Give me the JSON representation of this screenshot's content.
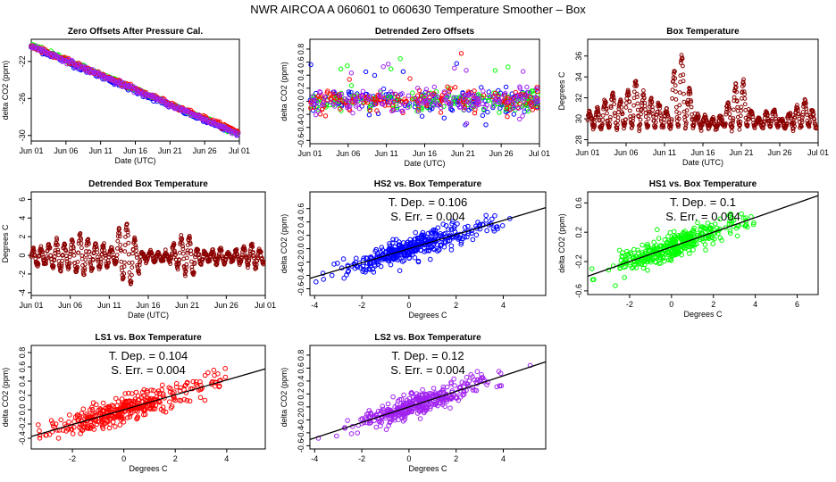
{
  "page_title": "NWR   AIRCOA A   060601 to 060630   Temperature Smoother – Box",
  "colors": {
    "axis": "#000000",
    "blue": "#0000ff",
    "green": "#00ff00",
    "red": "#ff0000",
    "magenta": "#a020f0",
    "maroon": "#8b0000",
    "orange": "#ff8c00",
    "fit": "#000000"
  },
  "chart_data": [
    {
      "id": "p1",
      "type": "scatter",
      "title": "Zero Offsets After Pressure Cal.",
      "xlabel": "Date (UTC)",
      "ylabel": "delta CO2 (ppm)",
      "xlim": [
        0,
        30
      ],
      "ylim": [
        -30.6,
        -19.6
      ],
      "x_ticks": [
        0,
        5,
        10,
        15,
        20,
        25,
        30
      ],
      "x_tick_labels": [
        "Jun 01",
        "Jun 06",
        "Jun 11",
        "Jun 16",
        "Jun 21",
        "Jun 26",
        "Jul 01"
      ],
      "y_ticks": [
        -30,
        -26,
        -22
      ],
      "y_tick_labels": [
        "-30",
        "-26",
        "-22"
      ],
      "series": [
        {
          "name": "HS2",
          "color": "blue",
          "trend": [
            -20.4,
            -29.9
          ],
          "noise": 0.35
        },
        {
          "name": "HS1",
          "color": "green",
          "trend": [
            -20.2,
            -29.7
          ],
          "noise": 0.3
        },
        {
          "name": "LS1",
          "color": "red",
          "trend": [
            -20.3,
            -29.6
          ],
          "noise": 0.3
        },
        {
          "name": "LS2",
          "color": "magenta",
          "trend": [
            -20.3,
            -29.8
          ],
          "noise": 0.35
        }
      ]
    },
    {
      "id": "p2",
      "type": "scatter",
      "title": "Detrended Zero Offsets",
      "xlabel": "Date (UTC)",
      "ylabel": "delta CO2 (ppm)",
      "xlim": [
        0,
        30
      ],
      "ylim": [
        -0.65,
        0.95
      ],
      "x_ticks": [
        0,
        5,
        10,
        15,
        20,
        25,
        30
      ],
      "x_tick_labels": [
        "Jun 01",
        "Jun 06",
        "Jun 11",
        "Jun 16",
        "Jun 21",
        "Jun 26",
        "Jul 01"
      ],
      "y_ticks": [
        -0.6,
        -0.4,
        -0.2,
        0.0,
        0.2,
        0.4,
        0.6,
        0.8
      ],
      "y_tick_labels": [
        "-0.6",
        "-0.4",
        "-0.2",
        "0.0",
        "0.2",
        "0.4",
        "0.6",
        "0.8"
      ],
      "series": [
        {
          "name": "HS2",
          "color": "blue",
          "noise": 0.2
        },
        {
          "name": "HS1",
          "color": "green",
          "noise": 0.17
        },
        {
          "name": "LS1",
          "color": "red",
          "noise": 0.2
        },
        {
          "name": "LS2",
          "color": "magenta",
          "noise": 0.2
        }
      ]
    },
    {
      "id": "p3",
      "type": "scatter",
      "title": "Box Temperature",
      "xlabel": "Date (UTC)",
      "ylabel": "Degrees C",
      "xlim": [
        0,
        30
      ],
      "ylim": [
        27.7,
        37.6
      ],
      "x_ticks": [
        0,
        5,
        10,
        15,
        20,
        25,
        30
      ],
      "x_tick_labels": [
        "Jun 01",
        "Jun 06",
        "Jun 11",
        "Jun 16",
        "Jun 21",
        "Jun 26",
        "Jul 01"
      ],
      "y_ticks": [
        28,
        30,
        32,
        34,
        36
      ],
      "y_tick_labels": [
        "28",
        "30",
        "32",
        "34",
        "36"
      ],
      "series": [
        {
          "name": "Box",
          "color": "maroon",
          "base": 29.2
        }
      ]
    },
    {
      "id": "p4",
      "type": "scatter",
      "title": "Detrended Box Temperature",
      "xlabel": "Date (UTC)",
      "ylabel": "Degrees C",
      "xlim": [
        0,
        30
      ],
      "ylim": [
        -4.3,
        6.8
      ],
      "x_ticks": [
        0,
        5,
        10,
        15,
        20,
        25,
        30
      ],
      "x_tick_labels": [
        "Jun 01",
        "Jun 06",
        "Jun 11",
        "Jun 16",
        "Jun 21",
        "Jun 26",
        "Jul 01"
      ],
      "y_ticks": [
        -4,
        -2,
        0,
        2,
        4,
        6
      ],
      "y_tick_labels": [
        "-4",
        "-2",
        "0",
        "2",
        "4",
        "6"
      ],
      "series": [
        {
          "name": "Box",
          "color": "maroon",
          "base": 0
        }
      ]
    },
    {
      "id": "p5",
      "type": "scatter",
      "title": "HS2 vs. Box Temperature",
      "xlabel": "Degrees C",
      "ylabel": "delta CO2 (ppm)",
      "xlim": [
        -4.2,
        5.8
      ],
      "ylim": [
        -0.7,
        0.85
      ],
      "x_ticks": [
        -4,
        -2,
        0,
        2,
        4
      ],
      "x_tick_labels": [
        "-4",
        "-2",
        "0",
        "2",
        "4"
      ],
      "y_ticks": [
        -0.6,
        -0.4,
        -0.2,
        0.0,
        0.2,
        0.4,
        0.6
      ],
      "y_tick_labels": [
        "-0.6",
        "-0.4",
        "-0.2",
        "0.0",
        "0.2",
        "0.4",
        "0.6"
      ],
      "color": "blue",
      "slope": 0.106,
      "intercept": 0.0,
      "annotation": {
        "t_dep": "T. Dep. =  0.106",
        "s_err": "S. Err. =  0.004"
      }
    },
    {
      "id": "p6",
      "type": "scatter",
      "title": "HS1 vs. Box Temperature",
      "xlabel": "Degrees C",
      "ylabel": "delta CO2 (ppm)",
      "xlim": [
        -4.0,
        7.0
      ],
      "ylim": [
        -0.65,
        0.75
      ],
      "x_ticks": [
        -2,
        0,
        2,
        4,
        6
      ],
      "x_tick_labels": [
        "-2",
        "0",
        "2",
        "4",
        "6"
      ],
      "y_ticks": [
        -0.6,
        -0.2,
        0.2,
        0.6
      ],
      "y_tick_labels": [
        "-0.6",
        "-0.2",
        "0.2",
        "0.6"
      ],
      "color": "green",
      "slope": 0.1,
      "intercept": 0.0,
      "annotation": {
        "t_dep": "T. Dep. =  0.1",
        "s_err": "S. Err. =  0.004"
      }
    },
    {
      "id": "p7",
      "type": "scatter",
      "title": "LS1 vs. Box Temperature",
      "xlabel": "Degrees C",
      "ylabel": "delta CO2 (ppm)",
      "xlim": [
        -3.6,
        5.5
      ],
      "ylim": [
        -0.55,
        0.9
      ],
      "x_ticks": [
        -2,
        0,
        2,
        4
      ],
      "x_tick_labels": [
        "-2",
        "0",
        "2",
        "4"
      ],
      "y_ticks": [
        -0.4,
        -0.2,
        0.0,
        0.2,
        0.4,
        0.6,
        0.8
      ],
      "y_tick_labels": [
        "-0.4",
        "-0.2",
        "0.0",
        "0.2",
        "0.4",
        "0.6",
        "0.8"
      ],
      "color": "red",
      "slope": 0.104,
      "intercept": 0.0,
      "annotation": {
        "t_dep": "T. Dep. =  0.104",
        "s_err": "S. Err. =  0.004"
      }
    },
    {
      "id": "p8",
      "type": "scatter",
      "title": "LS2 vs. Box Temperature",
      "xlabel": "Degrees C",
      "ylabel": "delta CO2 (ppm)",
      "xlim": [
        -4.2,
        5.8
      ],
      "ylim": [
        -0.65,
        0.95
      ],
      "x_ticks": [
        -4,
        -2,
        0,
        2,
        4
      ],
      "x_tick_labels": [
        "-4",
        "-2",
        "0",
        "2",
        "4"
      ],
      "y_ticks": [
        -0.6,
        -0.4,
        -0.2,
        0.0,
        0.2,
        0.4,
        0.6,
        0.8
      ],
      "y_tick_labels": [
        "-0.6",
        "-0.4",
        "-0.2",
        "0.0",
        "0.2",
        "0.4",
        "0.6",
        "0.8"
      ],
      "color": "magenta",
      "slope": 0.12,
      "intercept": 0.0,
      "annotation": {
        "t_dep": "T. Dep. =  0.12",
        "s_err": "S. Err. =  0.004"
      }
    }
  ]
}
